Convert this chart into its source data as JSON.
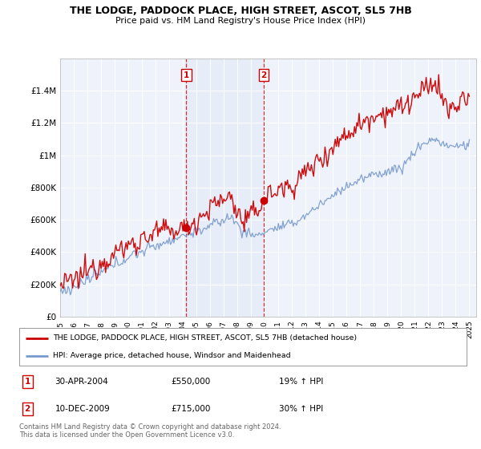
{
  "title": "THE LODGE, PADDOCK PLACE, HIGH STREET, ASCOT, SL5 7HB",
  "subtitle": "Price paid vs. HM Land Registry's House Price Index (HPI)",
  "red_label": "THE LODGE, PADDOCK PLACE, HIGH STREET, ASCOT, SL5 7HB (detached house)",
  "blue_label": "HPI: Average price, detached house, Windsor and Maidenhead",
  "purchase1_date": "30-APR-2004",
  "purchase1_price": "£550,000",
  "purchase1_hpi": "19% ↑ HPI",
  "purchase2_date": "10-DEC-2009",
  "purchase2_price": "£715,000",
  "purchase2_hpi": "30% ↑ HPI",
  "footnote": "Contains HM Land Registry data © Crown copyright and database right 2024.\nThis data is licensed under the Open Government Licence v3.0.",
  "ylim": [
    0,
    1600000
  ],
  "yticks": [
    0,
    200000,
    400000,
    600000,
    800000,
    1000000,
    1200000,
    1400000
  ],
  "ytick_labels": [
    "£0",
    "£200K",
    "£400K",
    "£600K",
    "£800K",
    "£1M",
    "£1.2M",
    "£1.4M"
  ],
  "background_color": "#ffffff",
  "plot_bg_color": "#eef2fb",
  "grid_color": "#ffffff",
  "red_color": "#cc0000",
  "blue_color": "#7799cc",
  "vline_color": "#cc0000",
  "purchase1_year": 2004.25,
  "purchase2_year": 2009.92,
  "xmin": 1995,
  "xmax": 2025.5
}
